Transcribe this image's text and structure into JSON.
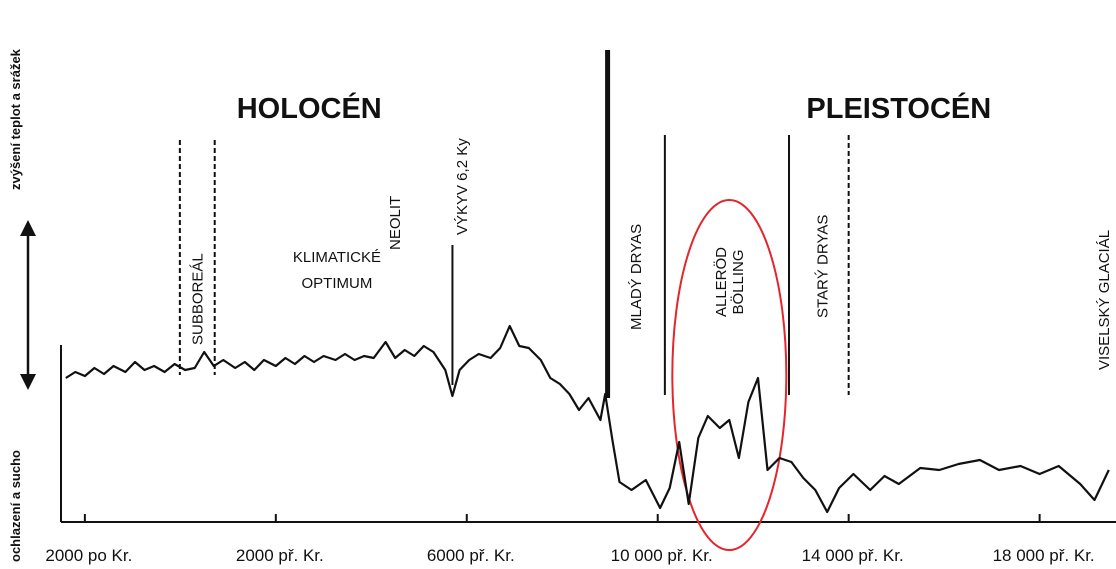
{
  "chart_data": {
    "type": "line",
    "y_label_top": "zvýšení teplot a srážek",
    "y_label_bottom": "ochlazení a sucho",
    "xlim": [
      2500,
      -19600
    ],
    "ylim": [
      0,
      100
    ],
    "xticks": [
      {
        "value": 2000,
        "label": "2000 po Kr."
      },
      {
        "value": -2000,
        "label": "2000 př. Kr."
      },
      {
        "value": -6000,
        "label": "6000 př. Kr."
      },
      {
        "value": -10000,
        "label": "10 000 př. Kr."
      },
      {
        "value": -14000,
        "label": "14 000 př. Kr."
      },
      {
        "value": -18000,
        "label": "18 000 př. Kr."
      }
    ],
    "color": "#111111",
    "x": [
      2400,
      2200,
      2000,
      1800,
      1600,
      1400,
      1150,
      950,
      750,
      550,
      330,
      120,
      -100,
      -300,
      -500,
      -700,
      -900,
      -1150,
      -1350,
      -1550,
      -1750,
      -2000,
      -2200,
      -2400,
      -2600,
      -2800,
      -3000,
      -3250,
      -3450,
      -3650,
      -3850,
      -4050,
      -4300,
      -4500,
      -4700,
      -4900,
      -5100,
      -5300,
      -5550,
      -5700,
      -5850,
      -6050,
      -6250,
      -6500,
      -6700,
      -6900,
      -7100,
      -7300,
      -7550,
      -7750,
      -7950,
      -8150,
      -8350,
      -8550,
      -8800,
      -8900,
      -9050,
      -9200,
      -9450,
      -9750,
      -10050,
      -10250,
      -10450,
      -10650,
      -10850,
      -11050,
      -11300,
      -11500,
      -11700,
      -11900,
      -12100,
      -12300,
      -12550,
      -12800,
      -13050,
      -13300,
      -13550,
      -13800,
      -14100,
      -14450,
      -14750,
      -15050,
      -15500,
      -15900,
      -16300,
      -16750,
      -17150,
      -17600,
      -18000,
      -18400,
      -18850,
      -19150,
      -19450
    ],
    "values": [
      71,
      74,
      72,
      76,
      73,
      77,
      74,
      79,
      75,
      77,
      74,
      78,
      75,
      76,
      84,
      77,
      80,
      76,
      79,
      75,
      80,
      77,
      81,
      78,
      82,
      79,
      82,
      80,
      83,
      80,
      82,
      81,
      89,
      81,
      85,
      82,
      87,
      84,
      75,
      62,
      75,
      80,
      83,
      81,
      86,
      97,
      87,
      86,
      80,
      71,
      68,
      63,
      55,
      61,
      50,
      63,
      40,
      19,
      15,
      20,
      6,
      16,
      39,
      8,
      41,
      52,
      46,
      50,
      31,
      59,
      71,
      25,
      31,
      29,
      21,
      15,
      4,
      16,
      23,
      15,
      22,
      18,
      26,
      25,
      28,
      30,
      25,
      27,
      23,
      27,
      18,
      10,
      25
    ],
    "periods": [
      {
        "text": "HOLOCÉN",
        "x": -2700
      },
      {
        "text": "PLEISTOCÉN",
        "x": -15050
      }
    ],
    "markers": [
      {
        "x": 10,
        "style": "dashed"
      },
      {
        "x": -720,
        "style": "dashed"
      },
      {
        "x": -5700,
        "style": "solid"
      },
      {
        "x": -8950,
        "style": "thick"
      },
      {
        "x": -10150,
        "style": "solid"
      },
      {
        "x": -12750,
        "style": "solid"
      },
      {
        "x": -14000,
        "style": "dashed"
      }
    ],
    "annotations": [
      {
        "text": [
          "SUBBOREÁL"
        ],
        "x": -360,
        "rotate": true
      },
      {
        "text": [
          "KLIMATICKÉ",
          "OPTIMUM"
        ],
        "x": -3280,
        "rotate": false
      },
      {
        "text": [
          "NEOLIT"
        ],
        "x": -4500,
        "rotate": true
      },
      {
        "text": [
          "VÝKYV 6,2 Ky"
        ],
        "x": -5900,
        "rotate": true
      },
      {
        "text": [
          "MLADÝ DRYAS"
        ],
        "x": -9550,
        "rotate": true
      },
      {
        "text": [
          "ALLERÖD",
          "BÖLLING"
        ],
        "x": -11500,
        "rotate": true
      },
      {
        "text": [
          "STARÝ DRYAS"
        ],
        "x": -13450,
        "rotate": true
      },
      {
        "text": [
          "VISELSKÝ GLACIÁL"
        ],
        "x": -19350,
        "rotate": true
      }
    ],
    "highlight": {
      "x": -11500,
      "color": "#e3262b"
    }
  }
}
